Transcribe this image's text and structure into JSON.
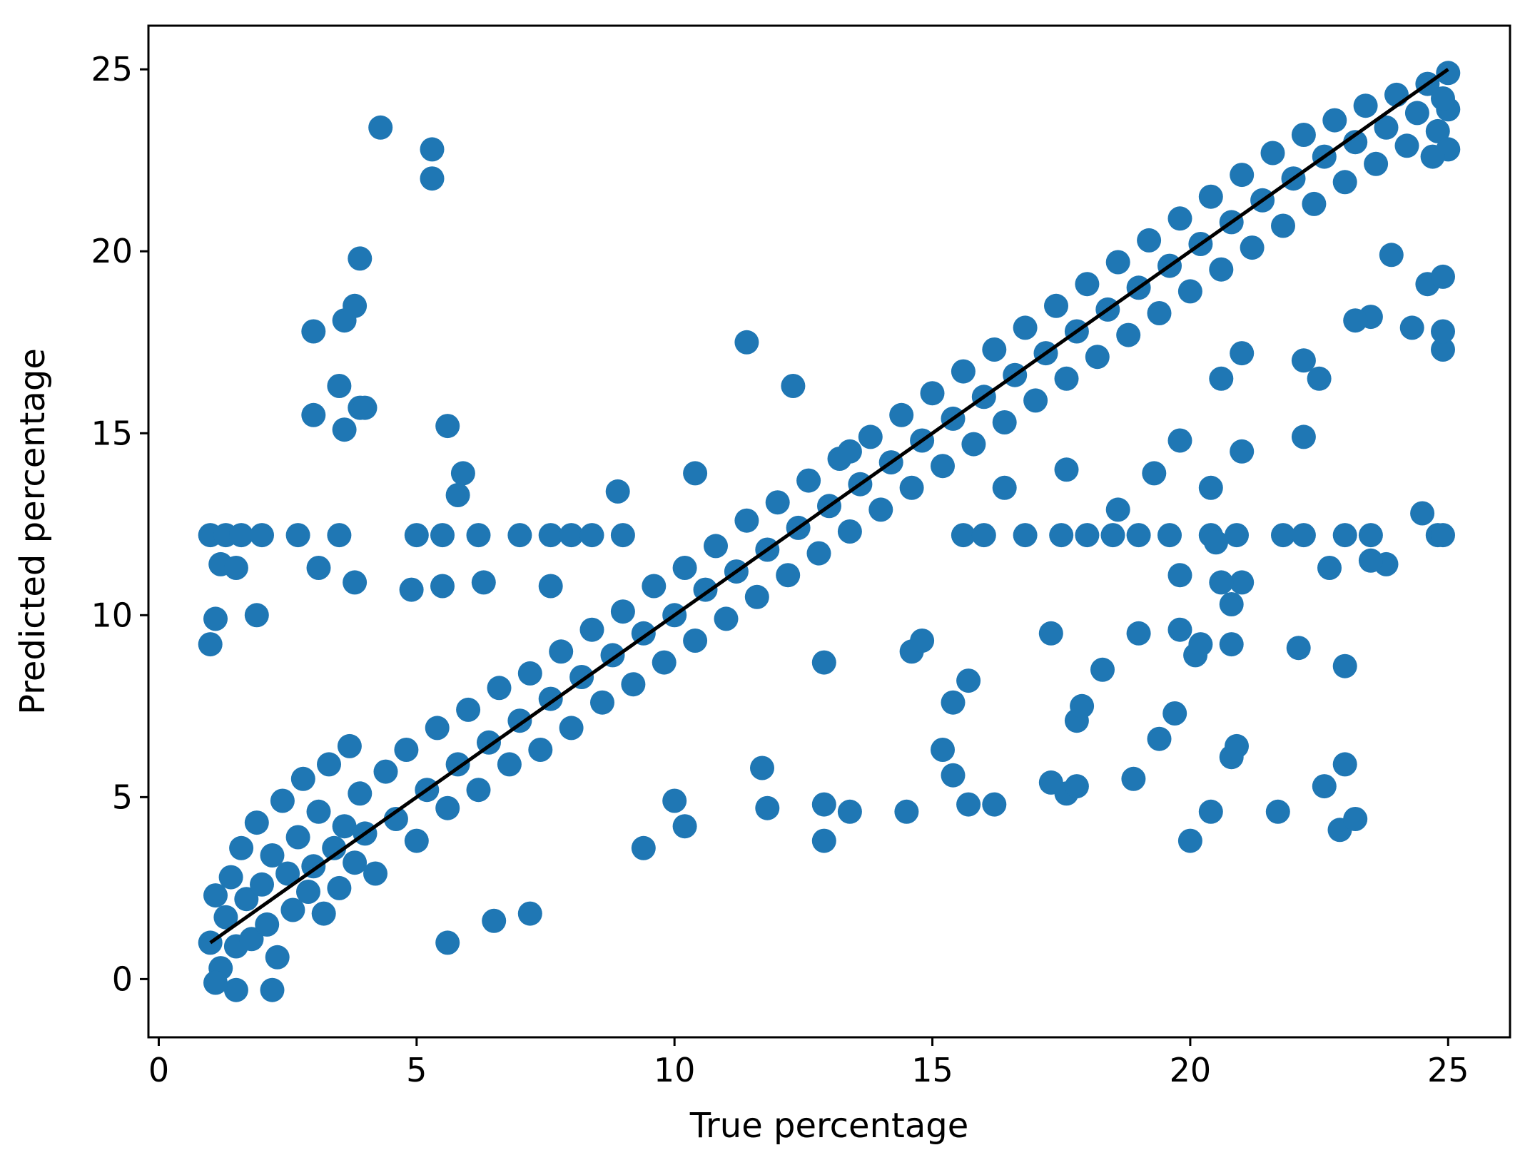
{
  "chart_data": {
    "type": "scatter",
    "title": "",
    "xlabel": "True percentage",
    "ylabel": "Predicted percentage",
    "xlim": [
      -0.2,
      26.2
    ],
    "ylim": [
      -1.6,
      26.2
    ],
    "xticks": [
      0,
      5,
      10,
      15,
      20,
      25
    ],
    "yticks": [
      0,
      5,
      10,
      15,
      20,
      25
    ],
    "grid": false,
    "legend": "none",
    "point_color": "#1f77b4",
    "reference_line": {
      "x": [
        1,
        25
      ],
      "y": [
        1,
        25
      ],
      "color": "#000000"
    },
    "series": [
      {
        "values": [
          [
            1.0,
            1.0
          ],
          [
            1.1,
            2.3
          ],
          [
            1.2,
            0.3
          ],
          [
            1.3,
            1.7
          ],
          [
            1.4,
            2.8
          ],
          [
            1.5,
            0.9
          ],
          [
            1.6,
            3.6
          ],
          [
            1.7,
            2.2
          ],
          [
            1.8,
            1.1
          ],
          [
            1.9,
            4.3
          ],
          [
            2.0,
            2.6
          ],
          [
            2.1,
            1.5
          ],
          [
            2.2,
            3.4
          ],
          [
            2.3,
            0.6
          ],
          [
            2.4,
            4.9
          ],
          [
            2.5,
            2.9
          ],
          [
            2.6,
            1.9
          ],
          [
            2.7,
            3.9
          ],
          [
            2.8,
            5.5
          ],
          [
            2.9,
            2.4
          ],
          [
            3.0,
            3.1
          ],
          [
            3.1,
            4.6
          ],
          [
            3.2,
            1.8
          ],
          [
            3.3,
            5.9
          ],
          [
            3.4,
            3.6
          ],
          [
            3.5,
            2.5
          ],
          [
            3.6,
            4.2
          ],
          [
            3.7,
            6.4
          ],
          [
            3.8,
            3.2
          ],
          [
            3.9,
            5.1
          ],
          [
            4.0,
            4.0
          ],
          [
            4.2,
            2.9
          ],
          [
            4.4,
            5.7
          ],
          [
            4.6,
            4.4
          ],
          [
            4.8,
            6.3
          ],
          [
            5.0,
            3.8
          ],
          [
            5.2,
            5.2
          ],
          [
            5.4,
            6.9
          ],
          [
            5.6,
            4.7
          ],
          [
            5.8,
            5.9
          ],
          [
            6.0,
            7.4
          ],
          [
            6.2,
            5.2
          ],
          [
            6.4,
            6.5
          ],
          [
            6.6,
            8.0
          ],
          [
            6.8,
            5.9
          ],
          [
            7.0,
            7.1
          ],
          [
            7.2,
            8.4
          ],
          [
            7.4,
            6.3
          ],
          [
            7.6,
            7.7
          ],
          [
            7.8,
            9.0
          ],
          [
            8.0,
            6.9
          ],
          [
            8.2,
            8.3
          ],
          [
            8.4,
            9.6
          ],
          [
            8.6,
            7.6
          ],
          [
            8.8,
            8.9
          ],
          [
            9.0,
            10.1
          ],
          [
            9.2,
            8.1
          ],
          [
            9.4,
            9.5
          ],
          [
            9.6,
            10.8
          ],
          [
            9.8,
            8.7
          ],
          [
            10.0,
            10.0
          ],
          [
            10.2,
            11.3
          ],
          [
            10.4,
            9.3
          ],
          [
            10.6,
            10.7
          ],
          [
            10.8,
            11.9
          ],
          [
            11.0,
            9.9
          ],
          [
            11.2,
            11.2
          ],
          [
            11.4,
            12.6
          ],
          [
            11.6,
            10.5
          ],
          [
            11.8,
            11.8
          ],
          [
            12.0,
            13.1
          ],
          [
            12.2,
            11.1
          ],
          [
            12.4,
            12.4
          ],
          [
            12.6,
            13.7
          ],
          [
            12.8,
            11.7
          ],
          [
            13.0,
            13.0
          ],
          [
            13.2,
            14.3
          ],
          [
            13.4,
            12.3
          ],
          [
            13.6,
            13.6
          ],
          [
            13.8,
            14.9
          ],
          [
            14.0,
            12.9
          ],
          [
            14.2,
            14.2
          ],
          [
            14.4,
            15.5
          ],
          [
            14.6,
            13.5
          ],
          [
            14.8,
            14.8
          ],
          [
            15.0,
            16.1
          ],
          [
            15.2,
            14.1
          ],
          [
            15.4,
            15.4
          ],
          [
            15.6,
            16.7
          ],
          [
            15.8,
            14.7
          ],
          [
            16.0,
            16.0
          ],
          [
            16.2,
            17.3
          ],
          [
            16.4,
            15.3
          ],
          [
            16.6,
            16.6
          ],
          [
            16.8,
            17.9
          ],
          [
            17.0,
            15.9
          ],
          [
            17.2,
            17.2
          ],
          [
            17.4,
            18.5
          ],
          [
            17.6,
            16.5
          ],
          [
            17.8,
            17.8
          ],
          [
            18.0,
            19.1
          ],
          [
            18.2,
            17.1
          ],
          [
            18.4,
            18.4
          ],
          [
            18.6,
            19.7
          ],
          [
            18.8,
            17.7
          ],
          [
            19.0,
            19.0
          ],
          [
            19.2,
            20.3
          ],
          [
            19.4,
            18.3
          ],
          [
            19.6,
            19.6
          ],
          [
            19.8,
            20.9
          ],
          [
            20.0,
            18.9
          ],
          [
            20.2,
            20.2
          ],
          [
            20.4,
            21.5
          ],
          [
            20.6,
            19.5
          ],
          [
            20.8,
            20.8
          ],
          [
            21.0,
            22.1
          ],
          [
            21.2,
            20.1
          ],
          [
            21.4,
            21.4
          ],
          [
            21.6,
            22.7
          ],
          [
            21.8,
            20.7
          ],
          [
            22.0,
            22.0
          ],
          [
            22.2,
            23.2
          ],
          [
            22.4,
            21.3
          ],
          [
            22.6,
            22.6
          ],
          [
            22.8,
            23.6
          ],
          [
            23.0,
            21.9
          ],
          [
            23.2,
            23.0
          ],
          [
            23.4,
            24.0
          ],
          [
            23.6,
            22.4
          ],
          [
            23.8,
            23.4
          ],
          [
            24.0,
            24.3
          ],
          [
            24.2,
            22.9
          ],
          [
            24.4,
            23.8
          ],
          [
            24.6,
            24.6
          ],
          [
            24.8,
            23.3
          ],
          [
            25.0,
            24.9
          ],
          [
            25.0,
            23.9
          ],
          [
            25.0,
            22.8
          ],
          [
            24.9,
            24.2
          ],
          [
            24.7,
            22.6
          ],
          [
            1.0,
            12.2
          ],
          [
            1.3,
            12.2
          ],
          [
            1.6,
            12.2
          ],
          [
            2.0,
            12.2
          ],
          [
            2.7,
            12.2
          ],
          [
            3.5,
            12.2
          ],
          [
            5.0,
            12.2
          ],
          [
            5.5,
            12.2
          ],
          [
            6.2,
            12.2
          ],
          [
            7.0,
            12.2
          ],
          [
            7.6,
            12.2
          ],
          [
            8.0,
            12.2
          ],
          [
            8.4,
            12.2
          ],
          [
            9.0,
            12.2
          ],
          [
            15.6,
            12.2
          ],
          [
            16.0,
            12.2
          ],
          [
            16.8,
            12.2
          ],
          [
            17.5,
            12.2
          ],
          [
            18.0,
            12.2
          ],
          [
            18.5,
            12.2
          ],
          [
            19.0,
            12.2
          ],
          [
            19.6,
            12.2
          ],
          [
            20.4,
            12.2
          ],
          [
            20.9,
            12.2
          ],
          [
            21.8,
            12.2
          ],
          [
            22.2,
            12.2
          ],
          [
            23.0,
            12.2
          ],
          [
            23.5,
            12.2
          ],
          [
            24.8,
            12.2
          ],
          [
            1.2,
            11.4
          ],
          [
            1.5,
            11.3
          ],
          [
            3.1,
            11.3
          ],
          [
            3.8,
            10.9
          ],
          [
            4.9,
            10.7
          ],
          [
            5.5,
            10.8
          ],
          [
            6.3,
            10.9
          ],
          [
            7.6,
            10.8
          ],
          [
            1.1,
            9.9
          ],
          [
            1.9,
            10.0
          ],
          [
            1.0,
            9.2
          ],
          [
            4.3,
            23.4
          ],
          [
            5.3,
            22.8
          ],
          [
            5.3,
            22.0
          ],
          [
            3.9,
            19.8
          ],
          [
            3.8,
            18.5
          ],
          [
            3.6,
            18.1
          ],
          [
            3.0,
            17.8
          ],
          [
            3.5,
            16.3
          ],
          [
            3.9,
            15.7
          ],
          [
            4.0,
            15.7
          ],
          [
            3.0,
            15.5
          ],
          [
            3.6,
            15.1
          ],
          [
            5.6,
            15.2
          ],
          [
            5.9,
            13.9
          ],
          [
            5.8,
            13.3
          ],
          [
            11.4,
            17.5
          ],
          [
            12.3,
            16.3
          ],
          [
            13.4,
            14.5
          ],
          [
            10.4,
            13.9
          ],
          [
            8.9,
            13.4
          ],
          [
            12.9,
            3.8
          ],
          [
            20.0,
            3.8
          ],
          [
            22.9,
            4.1
          ],
          [
            23.2,
            4.4
          ],
          [
            22.6,
            5.3
          ],
          [
            23.0,
            5.9
          ],
          [
            14.5,
            4.6
          ],
          [
            13.4,
            4.6
          ],
          [
            12.9,
            4.8
          ],
          [
            11.8,
            4.7
          ],
          [
            15.7,
            4.8
          ],
          [
            16.2,
            4.8
          ],
          [
            20.4,
            4.6
          ],
          [
            21.7,
            4.6
          ],
          [
            17.3,
            5.4
          ],
          [
            17.6,
            5.1
          ],
          [
            17.8,
            5.3
          ],
          [
            18.9,
            5.5
          ],
          [
            15.4,
            5.6
          ],
          [
            15.2,
            6.3
          ],
          [
            19.4,
            6.6
          ],
          [
            20.8,
            6.1
          ],
          [
            20.9,
            6.4
          ],
          [
            19.7,
            7.3
          ],
          [
            17.8,
            7.1
          ],
          [
            17.9,
            7.5
          ],
          [
            15.4,
            7.6
          ],
          [
            15.7,
            8.2
          ],
          [
            18.3,
            8.5
          ],
          [
            23.0,
            8.6
          ],
          [
            19.0,
            9.5
          ],
          [
            19.8,
            9.6
          ],
          [
            20.1,
            8.9
          ],
          [
            20.2,
            9.2
          ],
          [
            20.8,
            9.2
          ],
          [
            22.1,
            9.1
          ],
          [
            14.6,
            9.0
          ],
          [
            14.8,
            9.3
          ],
          [
            17.3,
            9.5
          ],
          [
            12.9,
            8.7
          ],
          [
            11.7,
            5.8
          ],
          [
            10.0,
            4.9
          ],
          [
            10.2,
            4.2
          ],
          [
            9.4,
            3.6
          ],
          [
            7.2,
            1.8
          ],
          [
            5.6,
            1.0
          ],
          [
            6.5,
            1.6
          ],
          [
            2.2,
            -0.3
          ],
          [
            1.5,
            -0.3
          ],
          [
            1.1,
            -0.1
          ],
          [
            24.9,
            17.3
          ],
          [
            24.9,
            17.8
          ],
          [
            24.5,
            12.8
          ],
          [
            24.9,
            12.2
          ],
          [
            23.8,
            11.4
          ],
          [
            23.5,
            11.5
          ],
          [
            22.7,
            11.3
          ],
          [
            21.0,
            10.9
          ],
          [
            20.8,
            10.3
          ],
          [
            20.6,
            10.9
          ],
          [
            20.5,
            12.0
          ],
          [
            19.8,
            11.1
          ],
          [
            22.2,
            14.9
          ],
          [
            21.0,
            14.5
          ],
          [
            20.4,
            13.5
          ],
          [
            19.8,
            14.8
          ],
          [
            19.3,
            13.9
          ],
          [
            18.6,
            12.9
          ],
          [
            17.6,
            14.0
          ],
          [
            16.4,
            13.5
          ],
          [
            23.5,
            18.2
          ],
          [
            23.2,
            18.1
          ],
          [
            24.3,
            17.9
          ],
          [
            24.6,
            19.1
          ],
          [
            24.9,
            19.3
          ],
          [
            23.9,
            19.9
          ],
          [
            22.5,
            16.5
          ],
          [
            22.2,
            17.0
          ],
          [
            21.0,
            17.2
          ],
          [
            20.6,
            16.5
          ]
        ]
      }
    ]
  }
}
